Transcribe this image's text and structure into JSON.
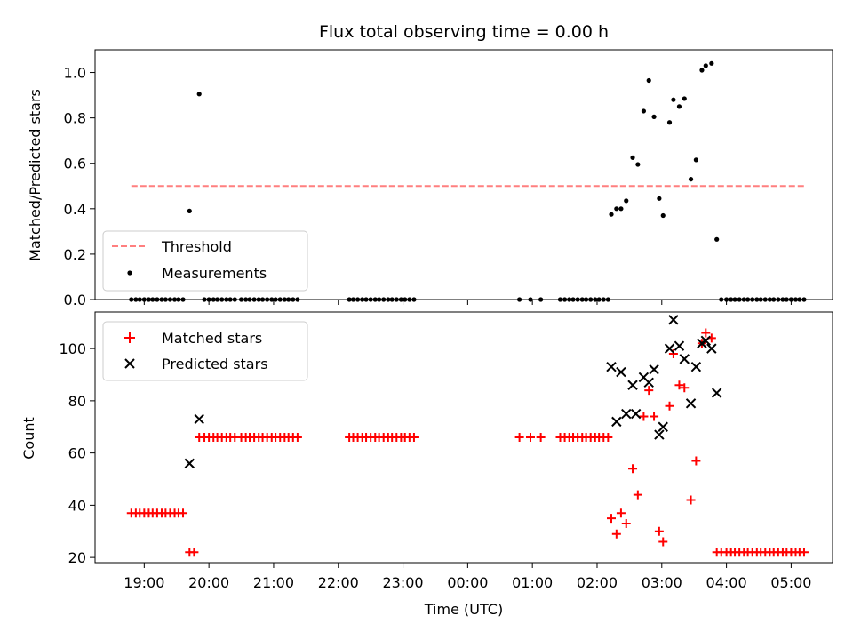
{
  "chart_data": [
    {
      "type": "scatter",
      "title": "Flux total observing time = 0.00 h",
      "xlabel": "",
      "ylabel": "Matched/Predicted stars",
      "xlim": [
        18.24,
        29.64
      ],
      "ylim": [
        0.0,
        1.1
      ],
      "y_ticks": [
        0.0,
        0.2,
        0.4,
        0.6,
        0.8,
        1.0
      ],
      "y_tick_labels": [
        "0.0",
        "0.2",
        "0.4",
        "0.6",
        "0.8",
        "1.0"
      ],
      "legend_position": "lower-left",
      "threshold": {
        "name": "Threshold",
        "y": 0.5,
        "x_range": [
          18.8,
          29.2
        ],
        "color": "#ff7f7f",
        "style": "dashed"
      },
      "series": [
        {
          "name": "Measurements",
          "marker": "dot",
          "color": "#000000",
          "x": [
            18.8,
            18.87,
            18.93,
            19.0,
            19.07,
            19.13,
            19.2,
            19.27,
            19.33,
            19.4,
            19.47,
            19.53,
            19.6,
            19.7,
            19.85,
            19.93,
            20.0,
            20.07,
            20.13,
            20.2,
            20.27,
            20.33,
            20.4,
            20.5,
            20.57,
            20.63,
            20.7,
            20.77,
            20.83,
            20.9,
            20.97,
            21.03,
            21.1,
            21.17,
            21.23,
            21.3,
            21.37,
            22.17,
            22.23,
            22.3,
            22.37,
            22.43,
            22.5,
            22.57,
            22.63,
            22.7,
            22.77,
            22.83,
            22.9,
            22.97,
            23.03,
            23.1,
            23.17,
            24.8,
            24.97,
            25.13,
            25.43,
            25.5,
            25.57,
            25.63,
            25.7,
            25.77,
            25.83,
            25.9,
            25.97,
            26.03,
            26.1,
            26.17,
            26.22,
            26.3,
            26.37,
            26.45,
            26.55,
            26.63,
            26.72,
            26.8,
            26.88,
            26.96,
            27.02,
            27.12,
            27.18,
            27.27,
            27.35,
            27.45,
            27.53,
            27.62,
            27.68,
            27.77,
            27.85,
            27.92,
            28.0,
            28.07,
            28.13,
            28.2,
            28.27,
            28.33,
            28.4,
            28.47,
            28.53,
            28.6,
            28.67,
            28.73,
            28.8,
            28.87,
            28.93,
            29.0,
            29.07,
            29.13,
            29.2
          ],
          "y": [
            0.0,
            0.0,
            0.0,
            0.0,
            0.0,
            0.0,
            0.0,
            0.0,
            0.0,
            0.0,
            0.0,
            0.0,
            0.0,
            0.39,
            0.905,
            0.0,
            0.0,
            0.0,
            0.0,
            0.0,
            0.0,
            0.0,
            0.0,
            0.0,
            0.0,
            0.0,
            0.0,
            0.0,
            0.0,
            0.0,
            0.0,
            0.0,
            0.0,
            0.0,
            0.0,
            0.0,
            0.0,
            0.0,
            0.0,
            0.0,
            0.0,
            0.0,
            0.0,
            0.0,
            0.0,
            0.0,
            0.0,
            0.0,
            0.0,
            0.0,
            0.0,
            0.0,
            0.0,
            0.0,
            0.0,
            0.0,
            0.0,
            0.0,
            0.0,
            0.0,
            0.0,
            0.0,
            0.0,
            0.0,
            0.0,
            0.0,
            0.0,
            0.0,
            0.375,
            0.4,
            0.4,
            0.435,
            0.625,
            0.595,
            0.83,
            0.965,
            0.805,
            0.445,
            0.37,
            0.78,
            0.88,
            0.85,
            0.885,
            0.53,
            0.615,
            1.01,
            1.03,
            1.04,
            0.265,
            0.0,
            0.0,
            0.0,
            0.0,
            0.0,
            0.0,
            0.0,
            0.0,
            0.0,
            0.0,
            0.0,
            0.0,
            0.0,
            0.0,
            0.0,
            0.0,
            0.0,
            0.0,
            0.0,
            0.0
          ]
        }
      ]
    },
    {
      "type": "scatter",
      "title": "",
      "xlabel": "Time (UTC)",
      "ylabel": "Count",
      "xlim": [
        18.24,
        29.64
      ],
      "ylim": [
        18,
        114
      ],
      "y_ticks": [
        20,
        40,
        60,
        80,
        100
      ],
      "y_tick_labels": [
        "20",
        "40",
        "60",
        "80",
        "100"
      ],
      "x_ticks": [
        19,
        20,
        21,
        22,
        23,
        24,
        25,
        26,
        27,
        28,
        29
      ],
      "x_tick_labels": [
        "19:00",
        "20:00",
        "21:00",
        "22:00",
        "23:00",
        "00:00",
        "01:00",
        "02:00",
        "03:00",
        "04:00",
        "05:00"
      ],
      "legend_position": "upper-left",
      "series": [
        {
          "name": "Matched stars",
          "marker": "plus",
          "color": "#ff0000",
          "x": [
            18.8,
            18.87,
            18.93,
            19.0,
            19.07,
            19.13,
            19.2,
            19.27,
            19.33,
            19.4,
            19.47,
            19.53,
            19.6,
            19.7,
            19.77,
            19.85,
            19.93,
            20.0,
            20.07,
            20.13,
            20.2,
            20.27,
            20.33,
            20.4,
            20.5,
            20.57,
            20.63,
            20.7,
            20.77,
            20.83,
            20.9,
            20.97,
            21.03,
            21.1,
            21.17,
            21.23,
            21.3,
            21.37,
            22.17,
            22.23,
            22.3,
            22.37,
            22.43,
            22.5,
            22.57,
            22.63,
            22.7,
            22.77,
            22.83,
            22.9,
            22.97,
            23.03,
            23.1,
            23.17,
            24.8,
            24.97,
            25.13,
            25.43,
            25.5,
            25.57,
            25.63,
            25.7,
            25.77,
            25.83,
            25.9,
            25.97,
            26.03,
            26.1,
            26.17,
            26.22,
            26.3,
            26.37,
            26.45,
            26.55,
            26.63,
            26.72,
            26.8,
            26.88,
            26.96,
            27.02,
            27.12,
            27.18,
            27.27,
            27.35,
            27.45,
            27.53,
            27.62,
            27.68,
            27.77,
            27.85,
            27.92,
            28.0,
            28.07,
            28.13,
            28.2,
            28.27,
            28.33,
            28.4,
            28.47,
            28.53,
            28.6,
            28.67,
            28.73,
            28.8,
            28.87,
            28.93,
            29.0,
            29.07,
            29.13,
            29.2
          ],
          "y": [
            37,
            37,
            37,
            37,
            37,
            37,
            37,
            37,
            37,
            37,
            37,
            37,
            37,
            22,
            22,
            66,
            66,
            66,
            66,
            66,
            66,
            66,
            66,
            66,
            66,
            66,
            66,
            66,
            66,
            66,
            66,
            66,
            66,
            66,
            66,
            66,
            66,
            66,
            66,
            66,
            66,
            66,
            66,
            66,
            66,
            66,
            66,
            66,
            66,
            66,
            66,
            66,
            66,
            66,
            66,
            66,
            66,
            66,
            66,
            66,
            66,
            66,
            66,
            66,
            66,
            66,
            66,
            66,
            66,
            35,
            29,
            37,
            33,
            54,
            44,
            74,
            84,
            74,
            30,
            26,
            78,
            98,
            86,
            85,
            42,
            57,
            102,
            106,
            104,
            22,
            22,
            22,
            22,
            22,
            22,
            22,
            22,
            22,
            22,
            22,
            22,
            22,
            22,
            22,
            22,
            22,
            22,
            22,
            22,
            22
          ]
        },
        {
          "name": "Predicted stars",
          "marker": "x",
          "color": "#000000",
          "x": [
            19.7,
            19.85,
            26.22,
            26.3,
            26.37,
            26.45,
            26.55,
            26.6,
            26.72,
            26.8,
            26.88,
            26.96,
            27.02,
            27.12,
            27.18,
            27.27,
            27.35,
            27.45,
            27.53,
            27.62,
            27.68,
            27.77,
            27.85
          ],
          "y": [
            56,
            73,
            93,
            72,
            91,
            75,
            86,
            75,
            89,
            87,
            92,
            67,
            70,
            100,
            111,
            101,
            96,
            79,
            93,
            102,
            103,
            100,
            83
          ]
        }
      ]
    }
  ]
}
